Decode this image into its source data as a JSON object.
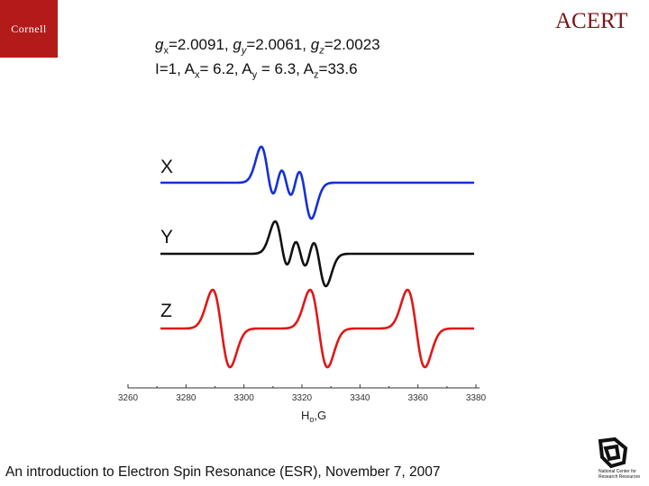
{
  "logos": {
    "left": "Cornell",
    "right": "ACERT",
    "bottom_right": "National Center for Research Resources",
    "left_icon": "cornell-logo-icon",
    "right_icon": "acert-logo-icon",
    "bottom_right_icon": "ncrr-logo-icon"
  },
  "header": {
    "g": {
      "x": "2.0091",
      "y": "2.0061",
      "z": "2.0023"
    },
    "A": {
      "I": "1",
      "x": "6.2",
      "y": "6.3",
      "z": "33.6"
    }
  },
  "chart_data": {
    "type": "line",
    "xlabel": "H",
    "xlabel_sub": "o",
    "xlabel_unit": ",G",
    "xlim": [
      3260,
      3380
    ],
    "xticks": [
      3260,
      3280,
      3300,
      3320,
      3340,
      3360,
      3380
    ],
    "grid": false,
    "series": [
      {
        "name": "X",
        "color": "#1530d8",
        "g": 2.0091,
        "A": 6.2,
        "linewidth": 5,
        "center": 3314.6
      },
      {
        "name": "Y",
        "color": "#111111",
        "g": 2.0061,
        "A": 6.3,
        "linewidth": 5,
        "center": 3319.5
      },
      {
        "name": "Z",
        "color": "#e01818",
        "g": 2.0023,
        "A": 33.6,
        "linewidth": 6,
        "center": 3325.8
      }
    ]
  },
  "footer": "An introduction to Electron Spin Resonance (ESR), November 7, 2007"
}
